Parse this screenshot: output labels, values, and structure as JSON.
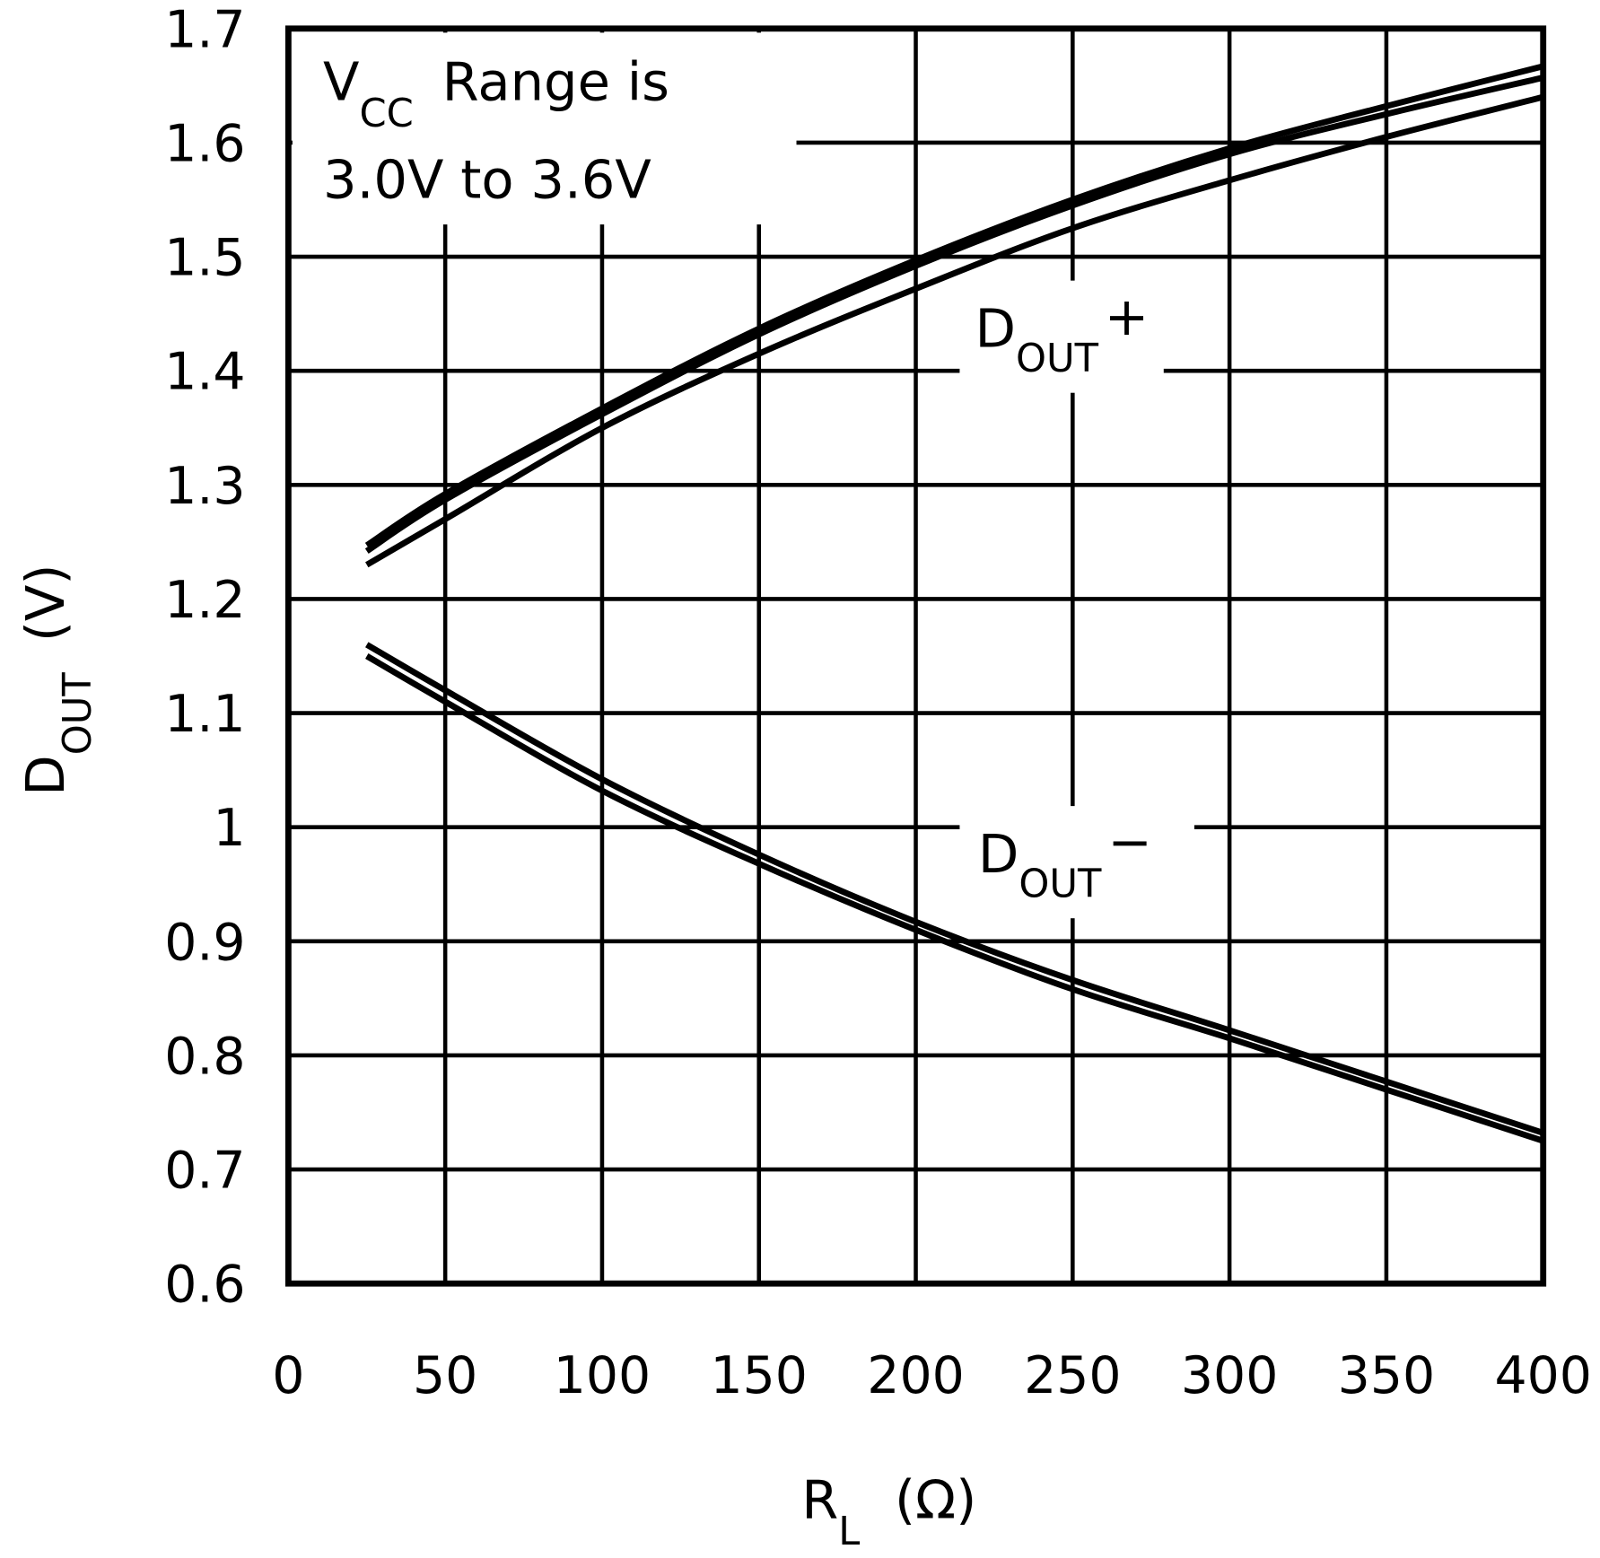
{
  "chart_data": {
    "type": "line",
    "title": "",
    "xlabel": {
      "main": "R",
      "sub": "L",
      "unit": "(Ω)"
    },
    "ylabel": {
      "main": "D",
      "sub": "OUT",
      "unit": "(V)"
    },
    "xlim": [
      0,
      400
    ],
    "ylim": [
      0.6,
      1.7
    ],
    "grid": true,
    "x_ticks": [
      "0",
      "50",
      "100",
      "150",
      "200",
      "250",
      "300",
      "350",
      "400"
    ],
    "y_ticks": [
      "0.6",
      "0.7",
      "0.8",
      "0.9",
      "1",
      "1.1",
      "1.2",
      "1.3",
      "1.4",
      "1.5",
      "1.6",
      "1.7"
    ],
    "annotation": {
      "line1_main": "V",
      "line1_sub": "CC",
      "line1_rest": "Range is",
      "line2": "3.0V to 3.6V"
    },
    "curve_labels": [
      {
        "main": "D",
        "sub": "OUT",
        "suffix": "+"
      },
      {
        "main": "D",
        "sub": "OUT",
        "suffix": "−"
      }
    ],
    "x": [
      25,
      50,
      100,
      150,
      200,
      250,
      300,
      350,
      400
    ],
    "series": [
      {
        "group": "DOUT+",
        "values": [
          1.247,
          1.292,
          1.367,
          1.437,
          1.497,
          1.55,
          1.595,
          1.632,
          1.667
        ]
      },
      {
        "group": "DOUT+",
        "values": [
          1.242,
          1.287,
          1.362,
          1.432,
          1.492,
          1.545,
          1.59,
          1.625,
          1.657
        ]
      },
      {
        "group": "DOUT+",
        "values": [
          1.23,
          1.27,
          1.35,
          1.415,
          1.472,
          1.525,
          1.567,
          1.605,
          1.64
        ]
      },
      {
        "group": "DOUT-",
        "values": [
          1.16,
          1.12,
          1.042,
          0.976,
          0.917,
          0.866,
          0.822,
          0.777,
          0.732
        ]
      },
      {
        "group": "DOUT-",
        "values": [
          1.15,
          1.11,
          1.032,
          0.968,
          0.91,
          0.858,
          0.815,
          0.77,
          0.725
        ]
      }
    ],
    "colors": {
      "line": "#000000",
      "background": "#ffffff"
    }
  }
}
